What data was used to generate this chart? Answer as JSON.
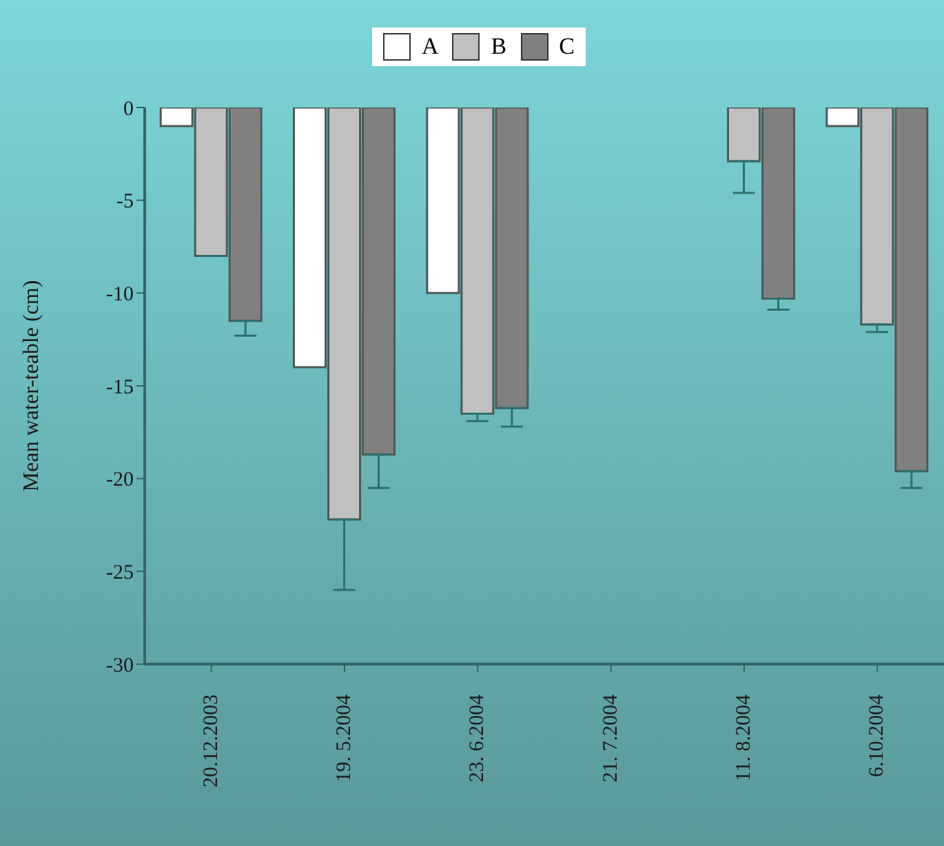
{
  "chart_data": {
    "type": "bar",
    "ylabel": "Mean water-teable (cm)",
    "categories": [
      "20.12.2003",
      "19. 5.2004",
      "23. 6.2004",
      "21. 7.2004",
      "11. 8.2004",
      "6.10.2004"
    ],
    "series": [
      {
        "name": "A",
        "color": "#ffffff",
        "values": [
          -1,
          -14,
          -10,
          null,
          null,
          -1
        ]
      },
      {
        "name": "B",
        "color": "#c0c0c0",
        "values": [
          -8,
          -22.2,
          -16.5,
          null,
          -2.9,
          -11.7
        ],
        "errors": [
          null,
          [
            -26,
            -22.2
          ],
          [
            -16.9,
            -16.5
          ],
          null,
          [
            -4.6,
            -2.9
          ],
          [
            -12.1,
            -11.7
          ]
        ]
      },
      {
        "name": "C",
        "color": "#808080",
        "values": [
          -11.5,
          -18.7,
          -16.2,
          null,
          -10.3,
          -19.6
        ],
        "errors": [
          [
            -12.3,
            -11.5
          ],
          [
            -20.5,
            -18.7
          ],
          [
            -17.2,
            -16.2
          ],
          null,
          [
            -10.9,
            -10.3
          ],
          [
            -20.5,
            -19.6
          ]
        ]
      }
    ],
    "ylim": [
      -30,
      0
    ],
    "yticks": [
      -30,
      -25,
      -20,
      -15,
      -10,
      -5,
      0
    ],
    "legend": "top"
  }
}
